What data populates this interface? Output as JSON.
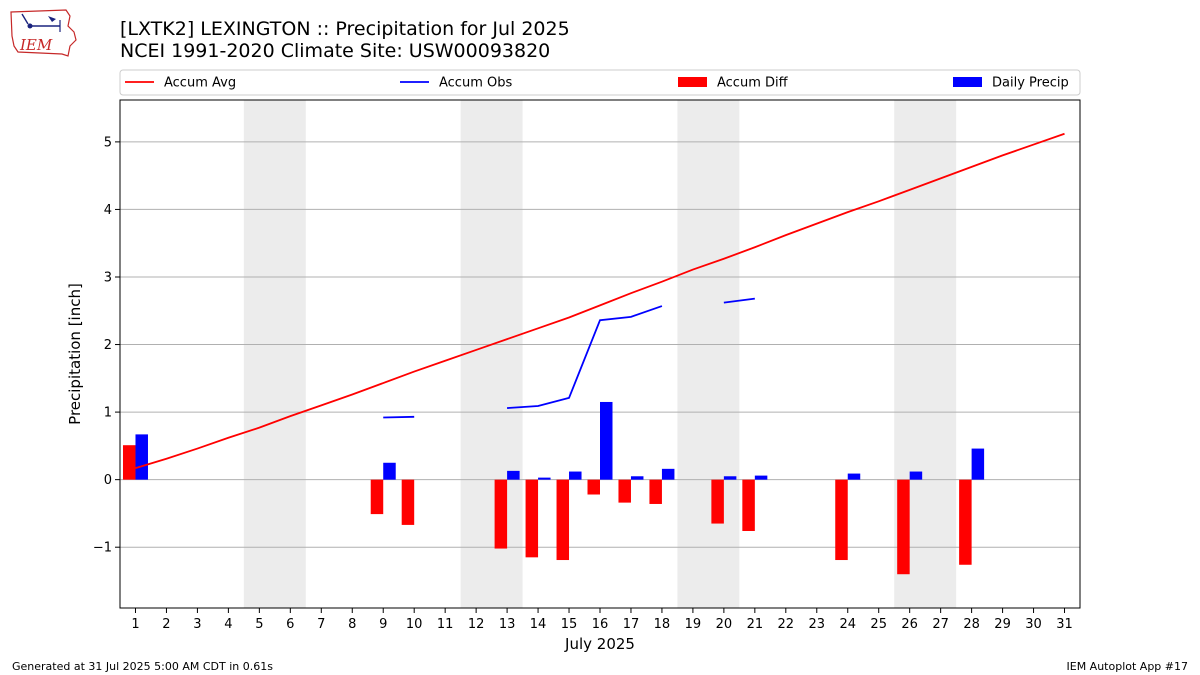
{
  "logo": {
    "text": "IEM",
    "icon": "iem-iowa-logo",
    "color": "#c62828"
  },
  "header": {
    "title_line1": "[LXTK2] LEXINGTON :: Precipitation for Jul 2025",
    "title_line2": "NCEI 1991-2020 Climate Site: USW00093820"
  },
  "footer": {
    "left": "Generated at 31 Jul 2025 5:00 AM CDT in 0.61s",
    "right": "IEM Autoplot App #17"
  },
  "colors": {
    "avg": "#ff0000",
    "obs": "#0000ff",
    "diff": "#ff0000",
    "daily": "#0000ff",
    "weekend": "#ececec",
    "grid": "#b0b0b0"
  },
  "chart_data": {
    "type": "bar",
    "xlabel": "July 2025",
    "ylabel": "Precipitation [inch]",
    "x": [
      1,
      2,
      3,
      4,
      5,
      6,
      7,
      8,
      9,
      10,
      11,
      12,
      13,
      14,
      15,
      16,
      17,
      18,
      19,
      20,
      21,
      22,
      23,
      24,
      25,
      26,
      27,
      28,
      29,
      30,
      31
    ],
    "xlim": [
      0.5,
      31.5
    ],
    "ylim": [
      -1.9,
      5.62
    ],
    "yticks": [
      -1,
      0,
      1,
      2,
      3,
      4,
      5
    ],
    "ytick_labels": [
      "−1",
      "0",
      "1",
      "2",
      "3",
      "4",
      "5"
    ],
    "grid": "horizontal",
    "legend_position": "top, above plot",
    "weekend_shading": [
      [
        4.5,
        6.5
      ],
      [
        11.5,
        13.5
      ],
      [
        18.5,
        20.5
      ],
      [
        25.5,
        27.5
      ]
    ],
    "series": [
      {
        "name": "Accum Avg",
        "kind": "line",
        "color": "#ff0000",
        "values": [
          0.17,
          0.31,
          0.46,
          0.62,
          0.77,
          0.94,
          1.1,
          1.26,
          1.43,
          1.6,
          1.76,
          1.92,
          2.08,
          2.24,
          2.4,
          2.58,
          2.76,
          2.93,
          3.11,
          3.27,
          3.44,
          3.62,
          3.79,
          3.96,
          4.12,
          4.29,
          4.46,
          4.63,
          4.8,
          4.96,
          5.12
        ]
      },
      {
        "name": "Accum Obs",
        "kind": "line",
        "color": "#0000ff",
        "values": [
          null,
          null,
          null,
          null,
          null,
          null,
          null,
          null,
          0.92,
          0.93,
          null,
          null,
          1.06,
          1.09,
          1.21,
          2.36,
          2.41,
          2.57,
          null,
          2.62,
          2.68,
          null,
          null,
          null,
          null,
          null,
          null,
          null,
          null,
          null,
          null
        ]
      },
      {
        "name": "Accum Diff",
        "kind": "bar",
        "color": "#ff0000",
        "values": [
          0.51,
          null,
          null,
          null,
          null,
          null,
          null,
          null,
          -0.51,
          -0.67,
          null,
          null,
          -1.02,
          -1.15,
          -1.19,
          -0.22,
          -0.34,
          -0.36,
          null,
          -0.65,
          -0.76,
          null,
          null,
          -1.19,
          null,
          -1.4,
          null,
          -1.26,
          null,
          null,
          null
        ]
      },
      {
        "name": "Daily Precip",
        "kind": "bar",
        "color": "#0000ff",
        "values": [
          0.67,
          null,
          null,
          null,
          null,
          null,
          null,
          null,
          0.25,
          null,
          null,
          null,
          0.13,
          0.03,
          0.12,
          1.15,
          0.05,
          0.16,
          null,
          0.05,
          0.06,
          null,
          null,
          0.09,
          null,
          0.12,
          null,
          0.46,
          null,
          null,
          null
        ]
      }
    ]
  }
}
